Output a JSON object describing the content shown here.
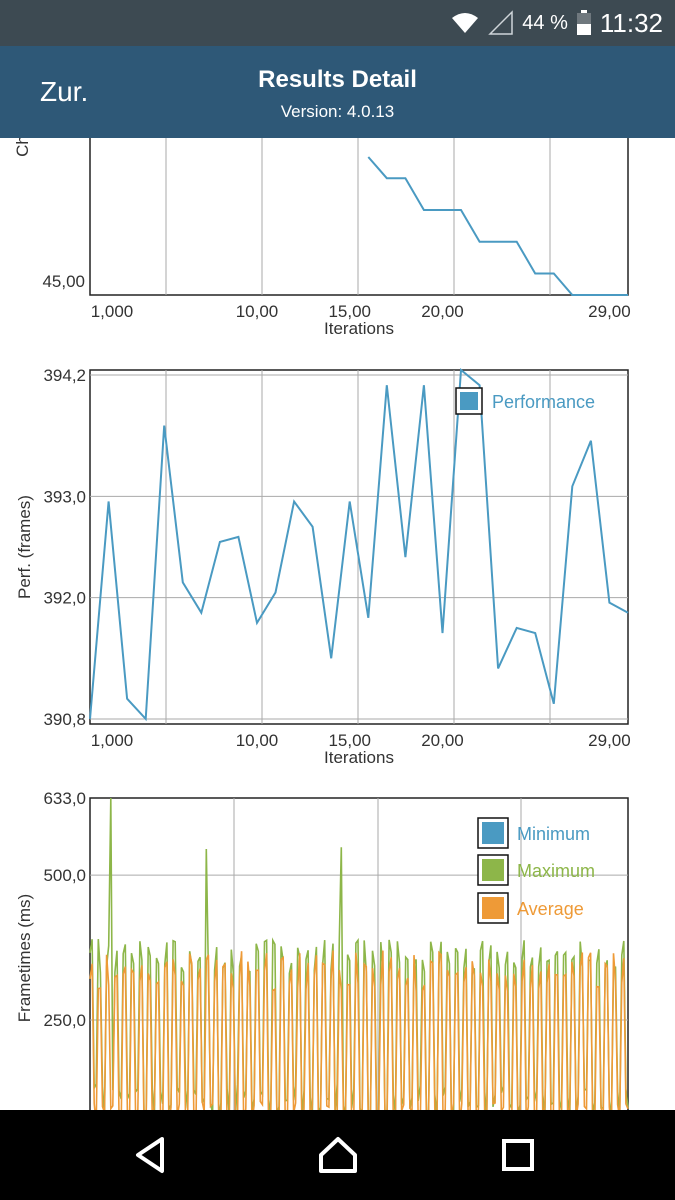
{
  "status_bar": {
    "battery": "44 %",
    "time": "11:32",
    "icons": [
      "wifi-icon",
      "signal-icon",
      "battery-icon"
    ]
  },
  "app_bar": {
    "back_label": "Zur.",
    "title": "Results Detail",
    "version": "Version: 4.0.13"
  },
  "colors": {
    "app_bar": "#2e5877",
    "status_bar": "#3d4a52",
    "perf": "#4a9ac2",
    "minimum": "#4a9ac2",
    "maximum": "#8db649",
    "average": "#ee9a37"
  },
  "chart_data": [
    {
      "type": "line",
      "ylabel": "Ch",
      "xlabel": "Iterations",
      "x_ticks": [
        "1,000",
        "10,00",
        "15,00",
        "20,00",
        "29,00"
      ],
      "y_ticks": [
        "45,00"
      ],
      "series": [
        {
          "x": [
            16,
            17,
            18,
            19,
            20,
            21,
            22,
            23,
            24,
            25,
            26,
            27,
            28,
            29,
            30
          ],
          "y": [
            47.6,
            47.2,
            47.2,
            46.6,
            46.6,
            46.6,
            46.0,
            46.0,
            46.0,
            45.4,
            45.4,
            44.9,
            44.9,
            44.9,
            44.9
          ]
        }
      ]
    },
    {
      "type": "line",
      "ylabel": "Perf. (frames)",
      "xlabel": "Iterations",
      "x_ticks": [
        "1,000",
        "10,00",
        "15,00",
        "20,00",
        "29,00"
      ],
      "y_ticks": [
        "394,2",
        "393,0",
        "392,0",
        "390,8"
      ],
      "legend": [
        "Performance"
      ],
      "series": [
        {
          "name": "Performance",
          "x": [
            1,
            2,
            3,
            4,
            5,
            6,
            7,
            8,
            9,
            10,
            11,
            12,
            13,
            14,
            15,
            16,
            17,
            18,
            19,
            20,
            21,
            22,
            23,
            24,
            25,
            26,
            27,
            28,
            29,
            30
          ],
          "y": [
            390.8,
            392.95,
            391.0,
            390.8,
            393.7,
            392.15,
            391.85,
            392.55,
            392.6,
            391.75,
            392.05,
            392.95,
            392.7,
            391.4,
            392.95,
            391.8,
            394.1,
            392.4,
            394.1,
            391.65,
            394.25,
            394.1,
            391.3,
            391.7,
            391.65,
            390.95,
            393.1,
            393.55,
            391.95,
            391.85
          ]
        }
      ]
    },
    {
      "type": "line",
      "ylabel": "Frametimes (ms)",
      "y_ticks": [
        "633,0",
        "500,0",
        "250,0"
      ],
      "legend": [
        "Minimum",
        "Maximum",
        "Average"
      ],
      "series": [
        {
          "name": "Minimum",
          "approx_range": [
            20,
            80
          ]
        },
        {
          "name": "Maximum",
          "approx_range": [
            70,
            633
          ],
          "peaks": [
            633,
            540,
            545
          ]
        },
        {
          "name": "Average",
          "approx_range": [
            50,
            380
          ]
        }
      ]
    }
  ]
}
